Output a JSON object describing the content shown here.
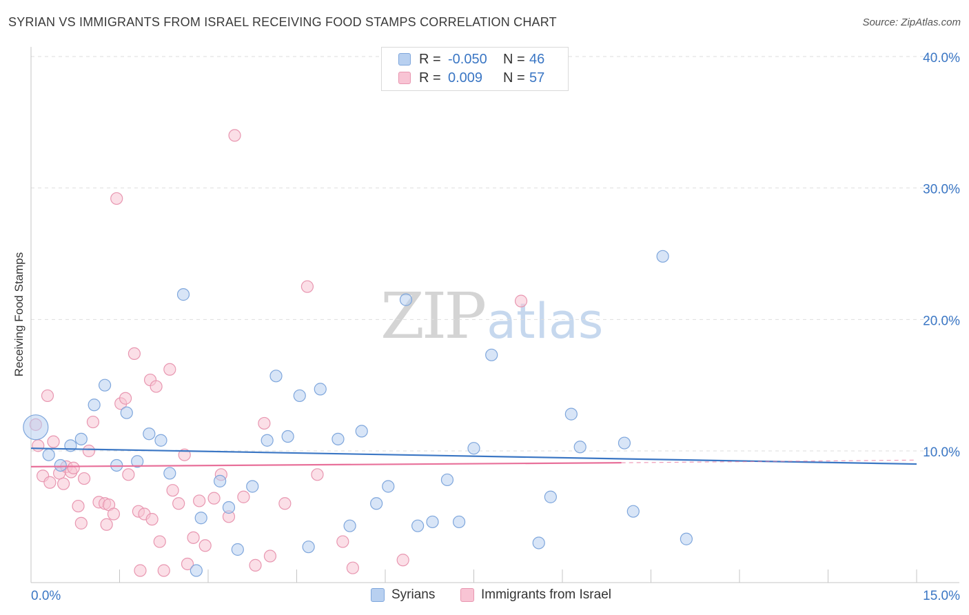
{
  "header": {
    "title": "SYRIAN VS IMMIGRANTS FROM ISRAEL RECEIVING FOOD STAMPS CORRELATION CHART",
    "source": "Source: ZipAtlas.com"
  },
  "watermark": {
    "zip": "ZIP",
    "atlas": "atlas"
  },
  "legend_box": {
    "rows": [
      {
        "r_label": "R =",
        "r_value": "-0.050",
        "n_label": "N =",
        "n_value": "46"
      },
      {
        "r_label": "R =",
        "r_value": "0.009",
        "n_label": "N =",
        "n_value": "57"
      }
    ]
  },
  "bottom_legend": {
    "syrians": "Syrians",
    "israel": "Immigrants from Israel"
  },
  "colors": {
    "syrians_fill": "#b8d0f0",
    "syrians_stroke": "#7ea6dc",
    "syrians_line": "#3a76c4",
    "israel_fill": "#f8c4d4",
    "israel_stroke": "#e896b0",
    "israel_line": "#e8709a",
    "axis_text": "#3a76c4"
  },
  "chart_data": {
    "type": "scatter",
    "title": "SYRIAN VS IMMIGRANTS FROM ISRAEL RECEIVING FOOD STAMPS CORRELATION CHART",
    "xlabel": "",
    "ylabel": "Receiving Food Stamps",
    "xlim": [
      0,
      15
    ],
    "ylim": [
      0,
      42
    ],
    "x_tick_labels": [
      "0.0%",
      "15.0%"
    ],
    "y_ticks": [
      10,
      20,
      30,
      40
    ],
    "y_tick_labels": [
      "10.0%",
      "20.0%",
      "30.0%",
      "40.0%"
    ],
    "grid": true,
    "series": [
      {
        "name": "Syrians",
        "r": -0.05,
        "n": 46,
        "trend": {
          "x": [
            0,
            15
          ],
          "y": [
            10.2,
            9.0
          ]
        },
        "points": [
          [
            0.08,
            11.8,
            1
          ],
          [
            0.3,
            9.7,
            0
          ],
          [
            0.5,
            8.9,
            0
          ],
          [
            0.67,
            10.4,
            0
          ],
          [
            0.85,
            10.9,
            0
          ],
          [
            1.07,
            13.5,
            0
          ],
          [
            1.25,
            15.0,
            0
          ],
          [
            1.45,
            8.9,
            0
          ],
          [
            1.62,
            12.9,
            0
          ],
          [
            1.8,
            9.2,
            0
          ],
          [
            2.0,
            11.3,
            0
          ],
          [
            2.2,
            10.8,
            0
          ],
          [
            2.35,
            8.3,
            0
          ],
          [
            2.58,
            21.9,
            0
          ],
          [
            2.8,
            0.9,
            0
          ],
          [
            2.88,
            4.9,
            0
          ],
          [
            3.2,
            7.7,
            0
          ],
          [
            3.35,
            5.7,
            0
          ],
          [
            3.5,
            2.5,
            0
          ],
          [
            3.75,
            7.3,
            0
          ],
          [
            4.0,
            10.8,
            0
          ],
          [
            4.15,
            15.7,
            0
          ],
          [
            4.35,
            11.1,
            0
          ],
          [
            4.55,
            14.2,
            0
          ],
          [
            4.7,
            2.7,
            0
          ],
          [
            4.9,
            14.7,
            0
          ],
          [
            5.2,
            10.9,
            0
          ],
          [
            5.4,
            4.3,
            0
          ],
          [
            5.6,
            11.5,
            0
          ],
          [
            5.85,
            6.0,
            0
          ],
          [
            6.05,
            7.3,
            0
          ],
          [
            6.35,
            21.5,
            0
          ],
          [
            6.55,
            4.3,
            0
          ],
          [
            6.8,
            4.6,
            0
          ],
          [
            7.05,
            7.8,
            0
          ],
          [
            7.25,
            4.6,
            0
          ],
          [
            7.5,
            10.2,
            0
          ],
          [
            7.8,
            17.3,
            0
          ],
          [
            8.6,
            3.0,
            0
          ],
          [
            8.8,
            6.5,
            0
          ],
          [
            9.15,
            12.8,
            0
          ],
          [
            9.3,
            10.3,
            0
          ],
          [
            10.05,
            10.6,
            0
          ],
          [
            10.2,
            5.4,
            0
          ],
          [
            10.7,
            24.8,
            0
          ],
          [
            11.1,
            3.3,
            0
          ]
        ]
      },
      {
        "name": "Immigrants from Israel",
        "r": 0.009,
        "n": 57,
        "trend": {
          "x": [
            0,
            10
          ],
          "y": [
            8.8,
            9.1
          ]
        },
        "trend_extension": {
          "x": [
            10,
            15
          ],
          "y": [
            9.1,
            9.3
          ]
        },
        "points": [
          [
            0.08,
            12.0,
            0
          ],
          [
            0.12,
            10.4,
            0
          ],
          [
            0.2,
            8.1,
            0
          ],
          [
            0.28,
            14.2,
            0
          ],
          [
            0.32,
            7.6,
            0
          ],
          [
            0.38,
            10.7,
            0
          ],
          [
            0.48,
            8.3,
            0
          ],
          [
            0.55,
            7.5,
            0
          ],
          [
            0.6,
            8.8,
            0
          ],
          [
            0.68,
            8.4,
            0
          ],
          [
            0.72,
            8.7,
            0
          ],
          [
            0.8,
            5.8,
            0
          ],
          [
            0.85,
            4.5,
            0
          ],
          [
            0.9,
            7.9,
            0
          ],
          [
            0.98,
            10.0,
            0
          ],
          [
            1.05,
            12.2,
            0
          ],
          [
            1.15,
            6.1,
            0
          ],
          [
            1.25,
            6.0,
            0
          ],
          [
            1.28,
            4.4,
            0
          ],
          [
            1.32,
            5.9,
            0
          ],
          [
            1.4,
            5.2,
            0
          ],
          [
            1.45,
            29.2,
            0
          ],
          [
            1.52,
            13.6,
            0
          ],
          [
            1.6,
            14.0,
            0
          ],
          [
            1.65,
            8.2,
            0
          ],
          [
            1.75,
            17.4,
            0
          ],
          [
            1.82,
            5.4,
            0
          ],
          [
            1.85,
            0.9,
            0
          ],
          [
            1.92,
            5.2,
            0
          ],
          [
            2.02,
            15.4,
            0
          ],
          [
            2.05,
            4.8,
            0
          ],
          [
            2.12,
            14.9,
            0
          ],
          [
            2.18,
            3.1,
            0
          ],
          [
            2.25,
            0.9,
            0
          ],
          [
            2.35,
            16.2,
            0
          ],
          [
            2.4,
            7.0,
            0
          ],
          [
            2.5,
            6.0,
            0
          ],
          [
            2.6,
            9.7,
            0
          ],
          [
            2.65,
            1.4,
            0
          ],
          [
            2.75,
            3.4,
            0
          ],
          [
            2.85,
            6.2,
            0
          ],
          [
            2.95,
            2.8,
            0
          ],
          [
            3.1,
            6.4,
            0
          ],
          [
            3.22,
            8.2,
            0
          ],
          [
            3.35,
            5.0,
            0
          ],
          [
            3.45,
            34.0,
            0
          ],
          [
            3.6,
            6.5,
            0
          ],
          [
            3.8,
            1.3,
            0
          ],
          [
            3.95,
            12.1,
            0
          ],
          [
            4.05,
            2.0,
            0
          ],
          [
            4.3,
            6.0,
            0
          ],
          [
            4.68,
            22.5,
            0
          ],
          [
            4.85,
            8.2,
            0
          ],
          [
            5.28,
            3.1,
            0
          ],
          [
            5.45,
            1.1,
            0
          ],
          [
            6.3,
            1.7,
            0
          ],
          [
            8.3,
            21.4,
            0
          ]
        ]
      }
    ]
  }
}
